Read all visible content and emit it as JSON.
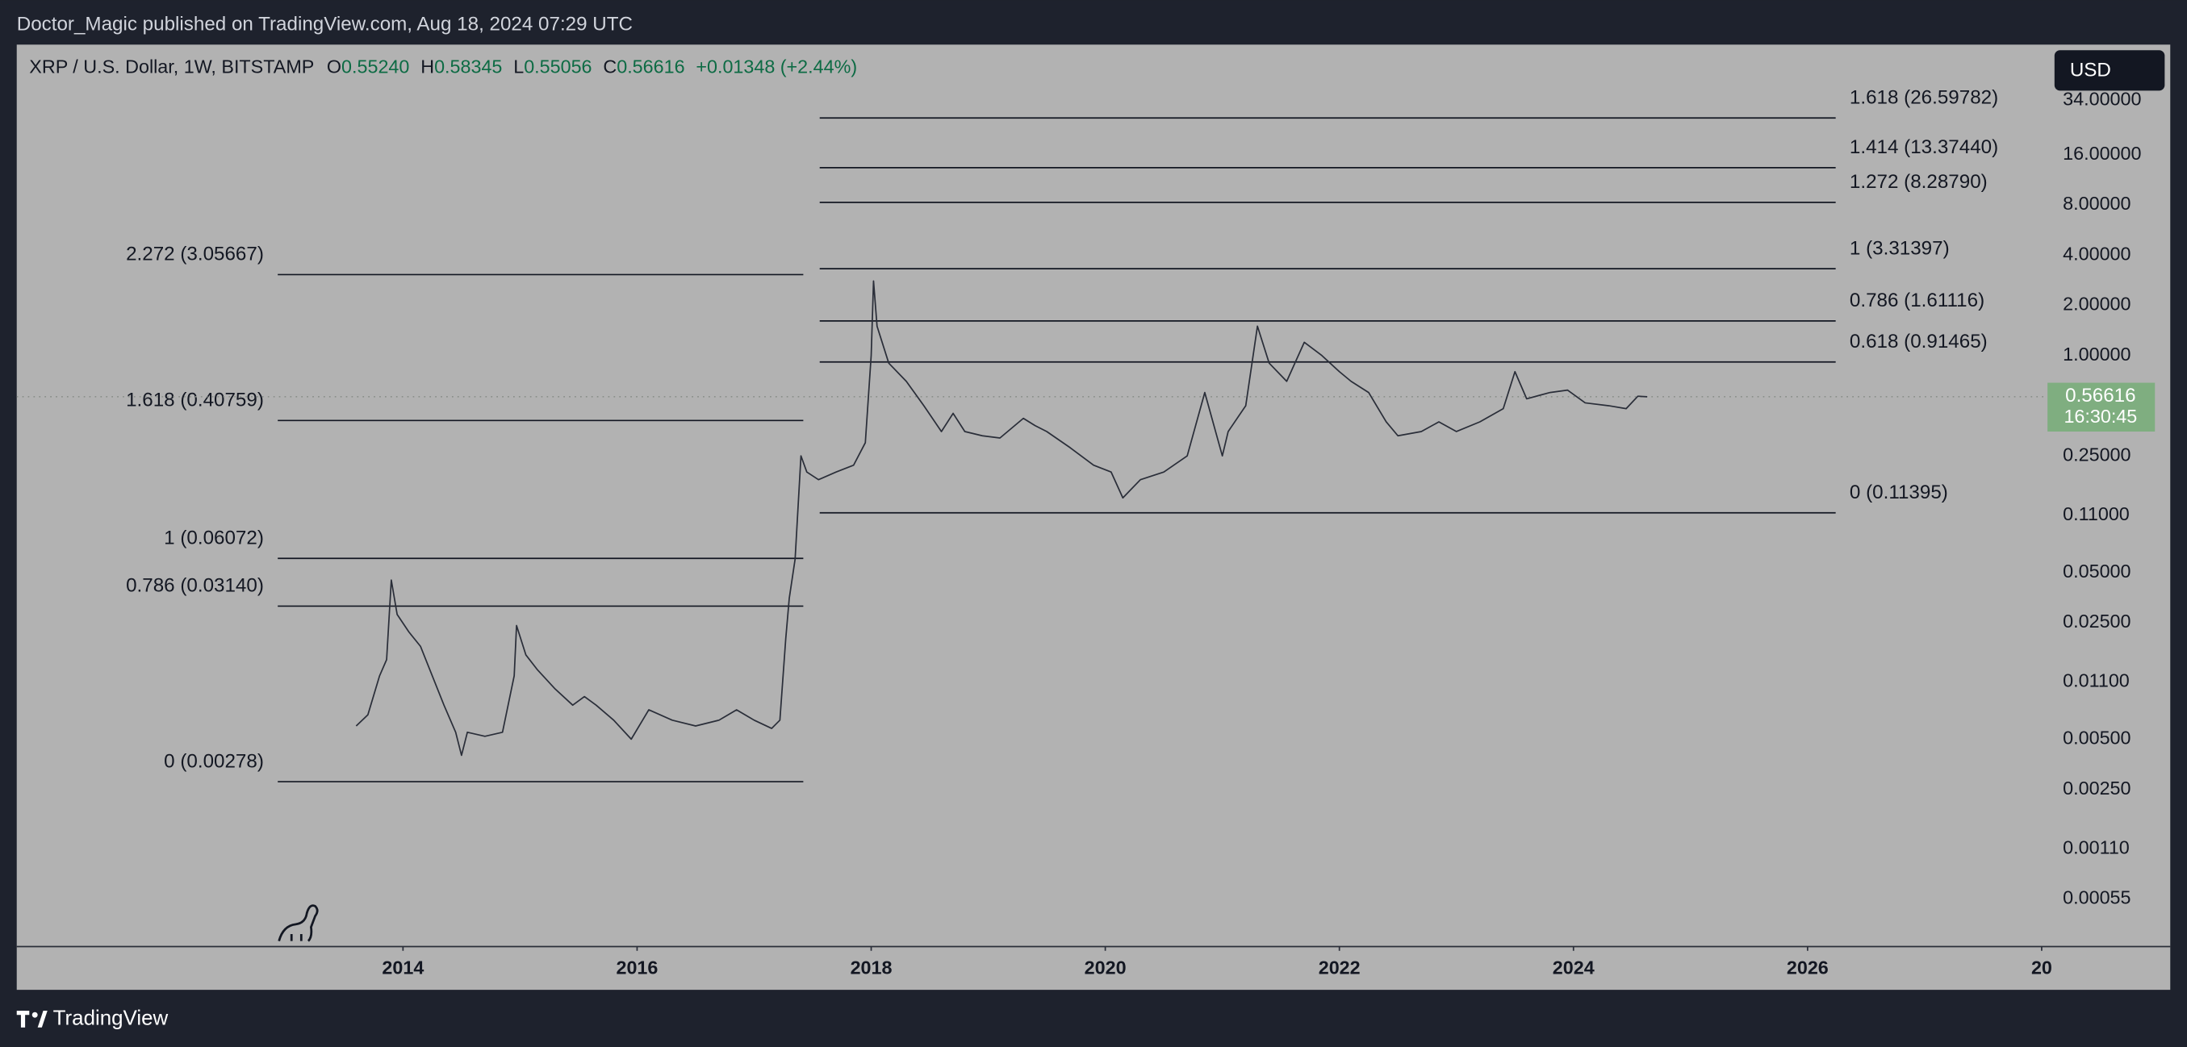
{
  "header": {
    "text": "Doctor_Magic published on TradingView.com, Aug 18, 2024 07:29 UTC"
  },
  "footer": {
    "brand": "TradingView"
  },
  "chart_data": {
    "type": "line",
    "title": "XRP / U.S. Dollar, 1W, BITSTAMP",
    "ohlc": [
      {
        "label": "O",
        "text": "0.55240"
      },
      {
        "label": "H",
        "text": "0.58345"
      },
      {
        "label": "L",
        "text": "0.55056"
      },
      {
        "label": "C",
        "text": "0.56616"
      }
    ],
    "change": "+0.01348 (+2.44%)",
    "currency": "USD",
    "last_price": {
      "value": 0.56616,
      "label": "0.56616",
      "countdown": "16:30:45",
      "color": "#7fae80"
    },
    "color": "#2a2e39",
    "x": [
      2013.6,
      2013.7,
      2013.8,
      2013.86,
      2013.9,
      2013.95,
      2014.05,
      2014.15,
      2014.25,
      2014.35,
      2014.45,
      2014.5,
      2014.55,
      2014.7,
      2014.85,
      2014.95,
      2014.97,
      2015.05,
      2015.15,
      2015.3,
      2015.45,
      2015.55,
      2015.65,
      2015.8,
      2015.95,
      2016.1,
      2016.3,
      2016.5,
      2016.7,
      2016.85,
      2017.0,
      2017.15,
      2017.22,
      2017.27,
      2017.3,
      2017.35,
      2017.4,
      2017.45,
      2017.55,
      2017.7,
      2017.85,
      2017.95,
      2018.0,
      2018.02,
      2018.05,
      2018.15,
      2018.3,
      2018.45,
      2018.6,
      2018.7,
      2018.8,
      2018.95,
      2019.1,
      2019.3,
      2019.4,
      2019.5,
      2019.7,
      2019.9,
      2020.05,
      2020.15,
      2020.3,
      2020.5,
      2020.7,
      2020.85,
      2021.0,
      2021.05,
      2021.2,
      2021.3,
      2021.4,
      2021.55,
      2021.7,
      2021.85,
      2022.0,
      2022.1,
      2022.25,
      2022.4,
      2022.5,
      2022.7,
      2022.85,
      2023.0,
      2023.2,
      2023.4,
      2023.5,
      2023.6,
      2023.8,
      2023.95,
      2024.1,
      2024.3,
      2024.45,
      2024.55,
      2024.63
    ],
    "values": [
      0.006,
      0.007,
      0.012,
      0.015,
      0.045,
      0.028,
      0.022,
      0.018,
      0.012,
      0.008,
      0.0055,
      0.004,
      0.0055,
      0.0052,
      0.0055,
      0.012,
      0.024,
      0.016,
      0.013,
      0.01,
      0.008,
      0.009,
      0.008,
      0.0065,
      0.005,
      0.0075,
      0.0065,
      0.006,
      0.0065,
      0.0075,
      0.0065,
      0.0058,
      0.0065,
      0.02,
      0.035,
      0.06,
      0.25,
      0.2,
      0.18,
      0.2,
      0.22,
      0.3,
      1.0,
      2.8,
      1.5,
      0.9,
      0.7,
      0.5,
      0.35,
      0.45,
      0.35,
      0.33,
      0.32,
      0.42,
      0.38,
      0.35,
      0.28,
      0.22,
      0.2,
      0.14,
      0.18,
      0.2,
      0.25,
      0.6,
      0.25,
      0.35,
      0.5,
      1.5,
      0.9,
      0.7,
      1.2,
      1.0,
      0.8,
      0.7,
      0.6,
      0.4,
      0.33,
      0.35,
      0.4,
      0.35,
      0.4,
      0.48,
      0.8,
      0.55,
      0.6,
      0.62,
      0.52,
      0.5,
      0.48,
      0.57,
      0.566
    ],
    "log_scale_y": true,
    "ylim": [
      0.000285,
      73.2
    ],
    "yticks": [
      {
        "value": 34,
        "label": "34.00000"
      },
      {
        "value": 16,
        "label": "16.00000"
      },
      {
        "value": 8,
        "label": "8.00000"
      },
      {
        "value": 4,
        "label": "4.00000"
      },
      {
        "value": 2,
        "label": "2.00000"
      },
      {
        "value": 1,
        "label": "1.00000"
      },
      {
        "value": 0.25,
        "label": "0.25000"
      },
      {
        "value": 0.11,
        "label": "0.11000"
      },
      {
        "value": 0.05,
        "label": "0.05000"
      },
      {
        "value": 0.025,
        "label": "0.02500"
      },
      {
        "value": 0.011,
        "label": "0.01100"
      },
      {
        "value": 0.005,
        "label": "0.00500"
      },
      {
        "value": 0.0025,
        "label": "0.00250"
      },
      {
        "value": 0.0011,
        "label": "0.00110"
      },
      {
        "value": 0.00055,
        "label": "0.00055"
      }
    ],
    "xlim": [
      2010.7,
      2028.05
    ],
    "xticks": [
      2014,
      2016,
      2018,
      2020,
      2022,
      2024,
      2026,
      {
        "value": 2028,
        "label": "20"
      }
    ],
    "fib_sets": [
      {
        "x": [
          2012.93,
          2017.42
        ],
        "label_side": "left",
        "levels": [
          {
            "label": "2.272 (3.05667)",
            "value": 3.05667
          },
          {
            "label": "1.618 (0.40759)",
            "value": 0.40759
          },
          {
            "label": "1 (0.06072)",
            "value": 0.06072
          },
          {
            "label": "0.786 (0.03140)",
            "value": 0.0314
          },
          {
            "label": "0 (0.00278)",
            "value": 0.00278
          }
        ]
      },
      {
        "x": [
          2017.56,
          2026.24
        ],
        "label_side": "right",
        "levels": [
          {
            "label": "1.618 (26.59782)",
            "value": 26.59782
          },
          {
            "label": "1.414 (13.37440)",
            "value": 13.3744
          },
          {
            "label": "1.272 (8.28790)",
            "value": 8.2879
          },
          {
            "label": "1 (3.31397)",
            "value": 3.31397
          },
          {
            "label": "0.786 (1.61116)",
            "value": 1.61116
          },
          {
            "label": "0.618 (0.91465)",
            "value": 0.91465
          },
          {
            "label": "0 (0.11395)",
            "value": 0.11395
          }
        ]
      }
    ]
  }
}
